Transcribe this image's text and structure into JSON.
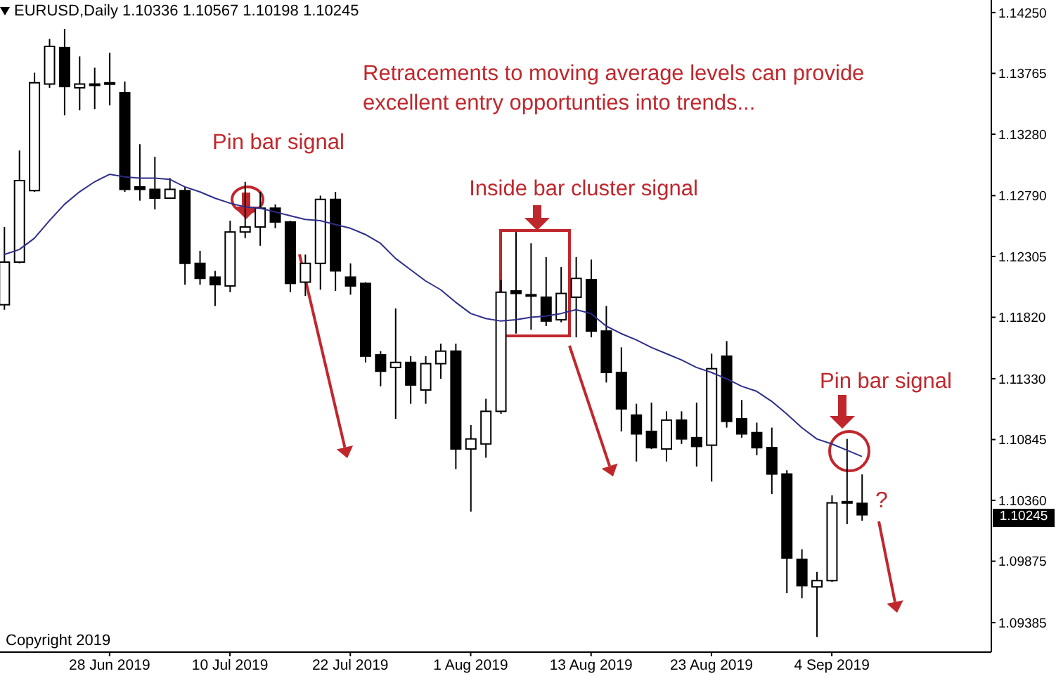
{
  "chart_data": {
    "type": "candlestick",
    "title": "EURUSD,Daily 1.10336 1.10567 1.10198 1.10245",
    "color": "#000000",
    "categories": [
      null,
      null,
      null,
      null,
      null,
      null,
      null,
      "28 Jun 2019",
      null,
      null,
      null,
      null,
      null,
      null,
      null,
      "10 Jul 2019",
      null,
      null,
      null,
      null,
      null,
      null,
      null,
      "22 Jul 2019",
      null,
      null,
      null,
      null,
      null,
      null,
      null,
      "1 Aug 2019",
      null,
      null,
      null,
      null,
      null,
      null,
      null,
      "13 Aug 2019",
      null,
      null,
      null,
      null,
      null,
      null,
      null,
      "23 Aug 2019",
      null,
      null,
      null,
      null,
      null,
      null,
      null,
      "4 Sep 2019",
      null,
      null
    ],
    "ohlc": [
      [
        1.1192,
        1.1254,
        1.1188,
        1.1226
      ],
      [
        1.1226,
        1.1315,
        1.1225,
        1.1291
      ],
      [
        1.1283,
        1.1377,
        1.1282,
        1.1369
      ],
      [
        1.1368,
        1.1404,
        1.1365,
        1.1398
      ],
      [
        1.1397,
        1.1412,
        1.1343,
        1.1366
      ],
      [
        1.1365,
        1.139,
        1.1347,
        1.1368
      ],
      [
        1.1367,
        1.1381,
        1.1348,
        1.1368
      ],
      [
        1.1369,
        1.1393,
        1.1351,
        1.1368
      ],
      [
        1.1361,
        1.137,
        1.1282,
        1.1284
      ],
      [
        1.1286,
        1.132,
        1.1275,
        1.1284
      ],
      [
        1.1284,
        1.131,
        1.1268,
        1.1277
      ],
      [
        1.1277,
        1.1293,
        1.1277,
        1.1284
      ],
      [
        1.1283,
        1.1286,
        1.1208,
        1.1225
      ],
      [
        1.1225,
        1.1235,
        1.1208,
        1.1213
      ],
      [
        1.1214,
        1.1219,
        1.1191,
        1.1208
      ],
      [
        1.1207,
        1.1259,
        1.1202,
        1.125
      ],
      [
        1.125,
        1.129,
        1.1245,
        1.1254
      ],
      [
        1.1254,
        1.1282,
        1.1239,
        1.1269
      ],
      [
        1.1269,
        1.1272,
        1.1253,
        1.1258
      ],
      [
        1.1258,
        1.1259,
        1.1202,
        1.1209
      ],
      [
        1.121,
        1.1232,
        1.1199,
        1.1225
      ],
      [
        1.1225,
        1.1279,
        1.1204,
        1.1276
      ],
      [
        1.1276,
        1.1282,
        1.1203,
        1.1219
      ],
      [
        1.1214,
        1.1225,
        1.12,
        1.1207
      ],
      [
        1.1209,
        1.121,
        1.1146,
        1.1151
      ],
      [
        1.1152,
        1.1155,
        1.1127,
        1.1139
      ],
      [
        1.1142,
        1.1189,
        1.1101,
        1.1146
      ],
      [
        1.1146,
        1.1151,
        1.1113,
        1.1128
      ],
      [
        1.1124,
        1.1151,
        1.1113,
        1.1145
      ],
      [
        1.1145,
        1.1161,
        1.1133,
        1.1155
      ],
      [
        1.1155,
        1.1161,
        1.1061,
        1.1077
      ],
      [
        1.1077,
        1.1096,
        1.1027,
        1.1085
      ],
      [
        1.1081,
        1.1117,
        1.107,
        1.1107
      ],
      [
        1.1107,
        1.1212,
        1.1105,
        1.1202
      ],
      [
        1.1203,
        1.125,
        1.1169,
        1.1201
      ],
      [
        1.12,
        1.1241,
        1.1172,
        1.1199
      ],
      [
        1.1198,
        1.123,
        1.1175,
        1.1179
      ],
      [
        1.118,
        1.1222,
        1.1178,
        1.1201
      ],
      [
        1.1198,
        1.123,
        1.1166,
        1.1213
      ],
      [
        1.1212,
        1.1228,
        1.1166,
        1.1171
      ],
      [
        1.1171,
        1.1191,
        1.113,
        1.1138
      ],
      [
        1.1138,
        1.1158,
        1.1091,
        1.1109
      ],
      [
        1.1104,
        1.1113,
        1.1067,
        1.1089
      ],
      [
        1.1091,
        1.1114,
        1.1077,
        1.1078
      ],
      [
        1.1077,
        1.1107,
        1.1067,
        1.11
      ],
      [
        1.11,
        1.1107,
        1.1081,
        1.1085
      ],
      [
        1.1086,
        1.1114,
        1.1063,
        1.1079
      ],
      [
        1.108,
        1.1153,
        1.1051,
        1.1141
      ],
      [
        1.1151,
        1.1163,
        1.1094,
        1.1099
      ],
      [
        1.1101,
        1.1116,
        1.1086,
        1.1089
      ],
      [
        1.109,
        1.1098,
        1.1072,
        1.1078
      ],
      [
        1.1078,
        1.1094,
        1.1041,
        1.1057
      ],
      [
        1.1057,
        1.106,
        1.0962,
        1.099
      ],
      [
        1.0989,
        1.0997,
        1.0958,
        1.0968
      ],
      [
        1.0967,
        1.0979,
        1.0927,
        1.0972
      ],
      [
        1.0972,
        1.104,
        1.0971,
        1.1034
      ],
      [
        1.1035,
        1.1085,
        1.1017,
        1.1034
      ],
      [
        1.10336,
        1.10567,
        1.10198,
        1.10245
      ]
    ],
    "series": [
      {
        "type": "line",
        "color": "#2e2e8a",
        "values": [
          1.1232,
          1.1236,
          1.1245,
          1.1259,
          1.1272,
          1.1282,
          1.129,
          1.1296,
          1.1294,
          1.1293,
          1.1293,
          1.1292,
          1.1286,
          1.1282,
          1.1277,
          1.1273,
          1.127,
          1.1269,
          1.1266,
          1.1263,
          1.126,
          1.1259,
          1.1256,
          1.1253,
          1.1248,
          1.1241,
          1.1229,
          1.122,
          1.1211,
          1.1204,
          1.1194,
          1.1185,
          1.1181,
          1.1179,
          1.118,
          1.1182,
          1.1183,
          1.1185,
          1.1188,
          1.1185,
          1.1175,
          1.1169,
          1.1164,
          1.1158,
          1.1153,
          1.1148,
          1.1142,
          1.1138,
          1.1133,
          1.1127,
          1.1123,
          1.1115,
          1.1105,
          1.1094,
          1.1085,
          1.1081,
          1.1076,
          1.1071
        ]
      }
    ],
    "ylim": [
      1.0915,
      1.1435
    ],
    "yticks": [
      {
        "value": 1.1425,
        "label": "1.14250"
      },
      {
        "value": 1.13765,
        "label": "1.13765"
      },
      {
        "value": 1.1328,
        "label": "1.13280"
      },
      {
        "value": 1.1279,
        "label": "1.12790"
      },
      {
        "value": 1.12305,
        "label": "1.12305"
      },
      {
        "value": 1.1182,
        "label": "1.11820"
      },
      {
        "value": 1.1133,
        "label": "1.11330"
      },
      {
        "value": 1.10845,
        "label": "1.10845"
      },
      {
        "value": 1.1036,
        "label": "1.10360"
      },
      {
        "value": 1.09875,
        "label": "1.09875"
      },
      {
        "value": 1.09385,
        "label": "1.09385"
      }
    ],
    "annotations": [
      "Retracements to moving average levels can provide excellent entry opportunties into trends...",
      "Pin bar signal",
      "Inside bar cluster signal",
      "Pin bar signal",
      "?",
      "Copyright 2019",
      "1.10245"
    ]
  }
}
